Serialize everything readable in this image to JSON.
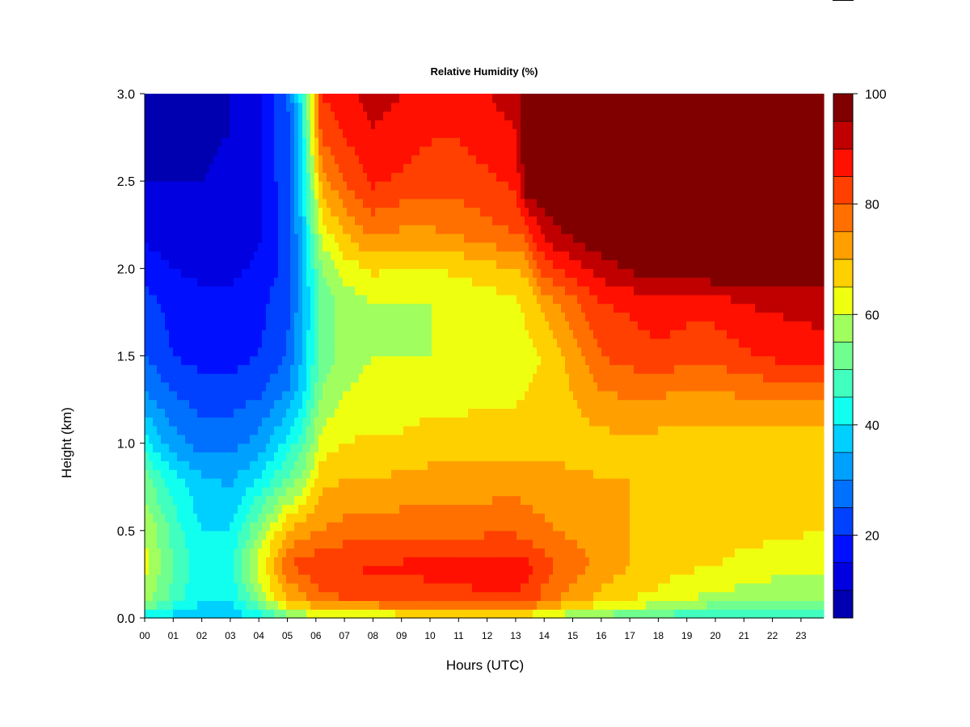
{
  "chart_data": {
    "type": "heatmap",
    "title": "Relative Humidity (%)",
    "xlabel": "Hours (UTC)",
    "ylabel": "Height (km)",
    "xlim": [
      0,
      23.8
    ],
    "ylim": [
      0,
      3
    ],
    "x_ticks": [
      "00",
      "01",
      "02",
      "03",
      "04",
      "05",
      "06",
      "07",
      "08",
      "09",
      "10",
      "11",
      "12",
      "13",
      "14",
      "15",
      "16",
      "17",
      "18",
      "19",
      "20",
      "21",
      "22",
      "23"
    ],
    "y_ticks": [
      "0.0",
      "0.5",
      "1.0",
      "1.5",
      "2.0",
      "2.5",
      "3.0"
    ],
    "y_tick_values": [
      0,
      0.5,
      1.0,
      1.5,
      2.0,
      2.5,
      3.0
    ],
    "colorbar": {
      "ticks": [
        "20",
        "40",
        "60",
        "80",
        "100"
      ],
      "tick_values": [
        20,
        40,
        60,
        80,
        100
      ],
      "levels": [
        5,
        10,
        15,
        20,
        25,
        30,
        35,
        40,
        45,
        50,
        55,
        60,
        65,
        70,
        75,
        80,
        85,
        90,
        95,
        100
      ],
      "colors": [
        "#000080",
        "#0000B0",
        "#0000E0",
        "#0010FF",
        "#0040FF",
        "#0070FF",
        "#00A0FF",
        "#00D0FF",
        "#10FFEF",
        "#40FFBF",
        "#70FF8F",
        "#A0FF5F",
        "#EFFF10",
        "#FFD000",
        "#FFA000",
        "#FF7000",
        "#FF4000",
        "#FF1000",
        "#C00000",
        "#800000"
      ]
    },
    "values_hours": [
      0,
      1,
      2,
      3,
      4,
      5,
      5.5,
      6.2,
      7,
      8,
      9,
      10,
      11,
      12,
      13,
      13.4,
      14,
      15,
      16,
      17,
      18,
      19,
      20,
      21,
      22,
      23.8
    ],
    "values_heights_km": [
      0,
      0.1,
      0.3,
      0.5,
      0.8,
      1.0,
      1.3,
      1.5,
      1.8,
      2.0,
      2.2,
      2.5,
      2.8,
      3.0
    ],
    "values_rh": [
      [
        40,
        37,
        34,
        36,
        40,
        50,
        55,
        58,
        60,
        58,
        60,
        60,
        62,
        60,
        62,
        60,
        58,
        55,
        52,
        50,
        48,
        45,
        44,
        43,
        42,
        42
      ],
      [
        58,
        48,
        40,
        40,
        55,
        70,
        72,
        78,
        80,
        80,
        82,
        82,
        83,
        84,
        84,
        83,
        78,
        72,
        68,
        65,
        63,
        60,
        58,
        57,
        55,
        55
      ],
      [
        62,
        50,
        42,
        43,
        62,
        80,
        82,
        84,
        85,
        86,
        86,
        87,
        87,
        88,
        88,
        87,
        82,
        78,
        73,
        70,
        68,
        66,
        65,
        64,
        63,
        62
      ],
      [
        60,
        48,
        40,
        40,
        55,
        70,
        73,
        75,
        77,
        77,
        78,
        78,
        78,
        79,
        79,
        78,
        76,
        74,
        72,
        70,
        69,
        68,
        67,
        66,
        66,
        65
      ],
      [
        52,
        42,
        36,
        34,
        40,
        50,
        56,
        68,
        70,
        70,
        71,
        72,
        72,
        72,
        73,
        72,
        72,
        71,
        70,
        70,
        69,
        68,
        68,
        67,
        66,
        66
      ],
      [
        42,
        32,
        28,
        28,
        32,
        42,
        48,
        62,
        65,
        66,
        66,
        67,
        67,
        68,
        68,
        68,
        68,
        68,
        68,
        69,
        68,
        67,
        67,
        67,
        66,
        66
      ],
      [
        30,
        25,
        22,
        22,
        24,
        30,
        38,
        55,
        60,
        62,
        62,
        63,
        63,
        64,
        64,
        65,
        66,
        70,
        75,
        76,
        76,
        75,
        75,
        76,
        77,
        78
      ],
      [
        25,
        20,
        18,
        18,
        20,
        25,
        35,
        52,
        57,
        60,
        60,
        60,
        61,
        62,
        62,
        64,
        65,
        72,
        80,
        82,
        84,
        82,
        82,
        84,
        86,
        88
      ],
      [
        22,
        18,
        16,
        16,
        18,
        24,
        33,
        52,
        57,
        60,
        60,
        60,
        61,
        62,
        64,
        66,
        72,
        78,
        85,
        86,
        88,
        87,
        87,
        90,
        91,
        92
      ],
      [
        18,
        15,
        14,
        14,
        16,
        22,
        33,
        55,
        62,
        66,
        65,
        65,
        66,
        68,
        70,
        72,
        82,
        88,
        92,
        96,
        98,
        99,
        100,
        100,
        100,
        100
      ],
      [
        14,
        12,
        12,
        12,
        14,
        22,
        35,
        62,
        70,
        76,
        74,
        74,
        76,
        78,
        80,
        82,
        92,
        96,
        100,
        100,
        100,
        100,
        100,
        100,
        100,
        100
      ],
      [
        10,
        10,
        10,
        12,
        14,
        24,
        38,
        72,
        80,
        86,
        84,
        82,
        82,
        84,
        86,
        100,
        100,
        100,
        100,
        100,
        100,
        100,
        100,
        100,
        100,
        100
      ],
      [
        8,
        8,
        8,
        10,
        14,
        24,
        40,
        82,
        86,
        90,
        88,
        86,
        86,
        88,
        90,
        100,
        100,
        100,
        100,
        100,
        100,
        100,
        100,
        100,
        100,
        100
      ],
      [
        8,
        8,
        8,
        10,
        14,
        24,
        42,
        85,
        88,
        92,
        90,
        88,
        88,
        90,
        92,
        100,
        100,
        100,
        100,
        100,
        100,
        100,
        100,
        100,
        100,
        100
      ]
    ]
  }
}
